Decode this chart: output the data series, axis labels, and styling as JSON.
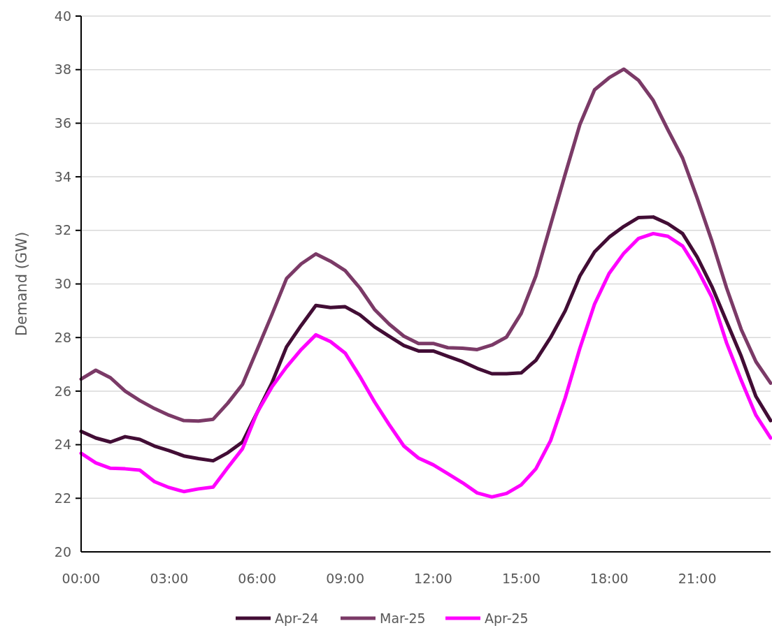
{
  "chart_data": {
    "type": "line",
    "ylabel": "Demand (GW)",
    "x": [
      0,
      0.5,
      1,
      1.5,
      2,
      2.5,
      3,
      3.5,
      4,
      4.5,
      5,
      5.5,
      6,
      6.5,
      7,
      7.5,
      8,
      8.5,
      9,
      9.5,
      10,
      10.5,
      11,
      11.5,
      12,
      12.5,
      13,
      13.5,
      14,
      14.5,
      15,
      15.5,
      16,
      16.5,
      17,
      17.5,
      18,
      18.5,
      19,
      19.5,
      20,
      20.5,
      21,
      21.5,
      22,
      22.5,
      23,
      23.5
    ],
    "series": [
      {
        "name": "Apr-24",
        "color": "#420d35",
        "values": [
          24.5,
          24.25,
          24.1,
          24.3,
          24.2,
          23.95,
          23.78,
          23.58,
          23.48,
          23.4,
          23.7,
          24.1,
          25.2,
          26.3,
          27.65,
          28.45,
          29.2,
          29.12,
          29.15,
          28.85,
          28.4,
          28.05,
          27.7,
          27.5,
          27.5,
          27.3,
          27.1,
          26.85,
          26.65,
          26.65,
          26.68,
          27.15,
          28.0,
          29.0,
          30.3,
          31.2,
          31.75,
          32.15,
          32.48,
          32.5,
          32.25,
          31.88,
          31.0,
          29.9,
          28.6,
          27.3,
          25.8,
          24.9
        ]
      },
      {
        "name": "Mar-25",
        "color": "#7b3a67",
        "values": [
          26.45,
          26.78,
          26.5,
          26.0,
          25.65,
          25.35,
          25.1,
          24.9,
          24.88,
          24.95,
          25.55,
          26.25,
          27.55,
          28.85,
          30.2,
          30.75,
          31.12,
          30.85,
          30.5,
          29.85,
          29.05,
          28.5,
          28.05,
          27.78,
          27.78,
          27.62,
          27.6,
          27.55,
          27.72,
          28.02,
          28.9,
          30.3,
          32.2,
          34.1,
          35.95,
          37.25,
          37.7,
          38.02,
          37.6,
          36.85,
          35.75,
          34.7,
          33.2,
          31.6,
          29.85,
          28.3,
          27.1,
          26.3
        ]
      },
      {
        "name": "Apr-25",
        "color": "#ff00ff",
        "values": [
          23.68,
          23.32,
          23.12,
          23.1,
          23.05,
          22.62,
          22.4,
          22.25,
          22.35,
          22.42,
          23.15,
          23.85,
          25.2,
          26.15,
          26.9,
          27.55,
          28.1,
          27.85,
          27.42,
          26.55,
          25.6,
          24.75,
          23.95,
          23.5,
          23.25,
          22.92,
          22.58,
          22.2,
          22.05,
          22.18,
          22.5,
          23.1,
          24.15,
          25.75,
          27.6,
          29.25,
          30.4,
          31.15,
          31.7,
          31.88,
          31.78,
          31.42,
          30.55,
          29.5,
          27.8,
          26.4,
          25.1,
          24.25
        ]
      }
    ],
    "xlim": [
      0,
      23.5
    ],
    "xticks": [
      {
        "value": 0,
        "label": "00:00"
      },
      {
        "value": 3,
        "label": "03:00"
      },
      {
        "value": 6,
        "label": "06:00"
      },
      {
        "value": 9,
        "label": "09:00"
      },
      {
        "value": 12,
        "label": "12:00"
      },
      {
        "value": 15,
        "label": "15:00"
      },
      {
        "value": 18,
        "label": "18:00"
      },
      {
        "value": 21,
        "label": "21:00"
      }
    ],
    "ylim": [
      20,
      40
    ],
    "yticks": [
      20,
      22,
      24,
      26,
      28,
      30,
      32,
      34,
      36,
      38,
      40
    ],
    "grid": "y",
    "legend": "bottom",
    "marker": "none",
    "line_style": "solid"
  }
}
